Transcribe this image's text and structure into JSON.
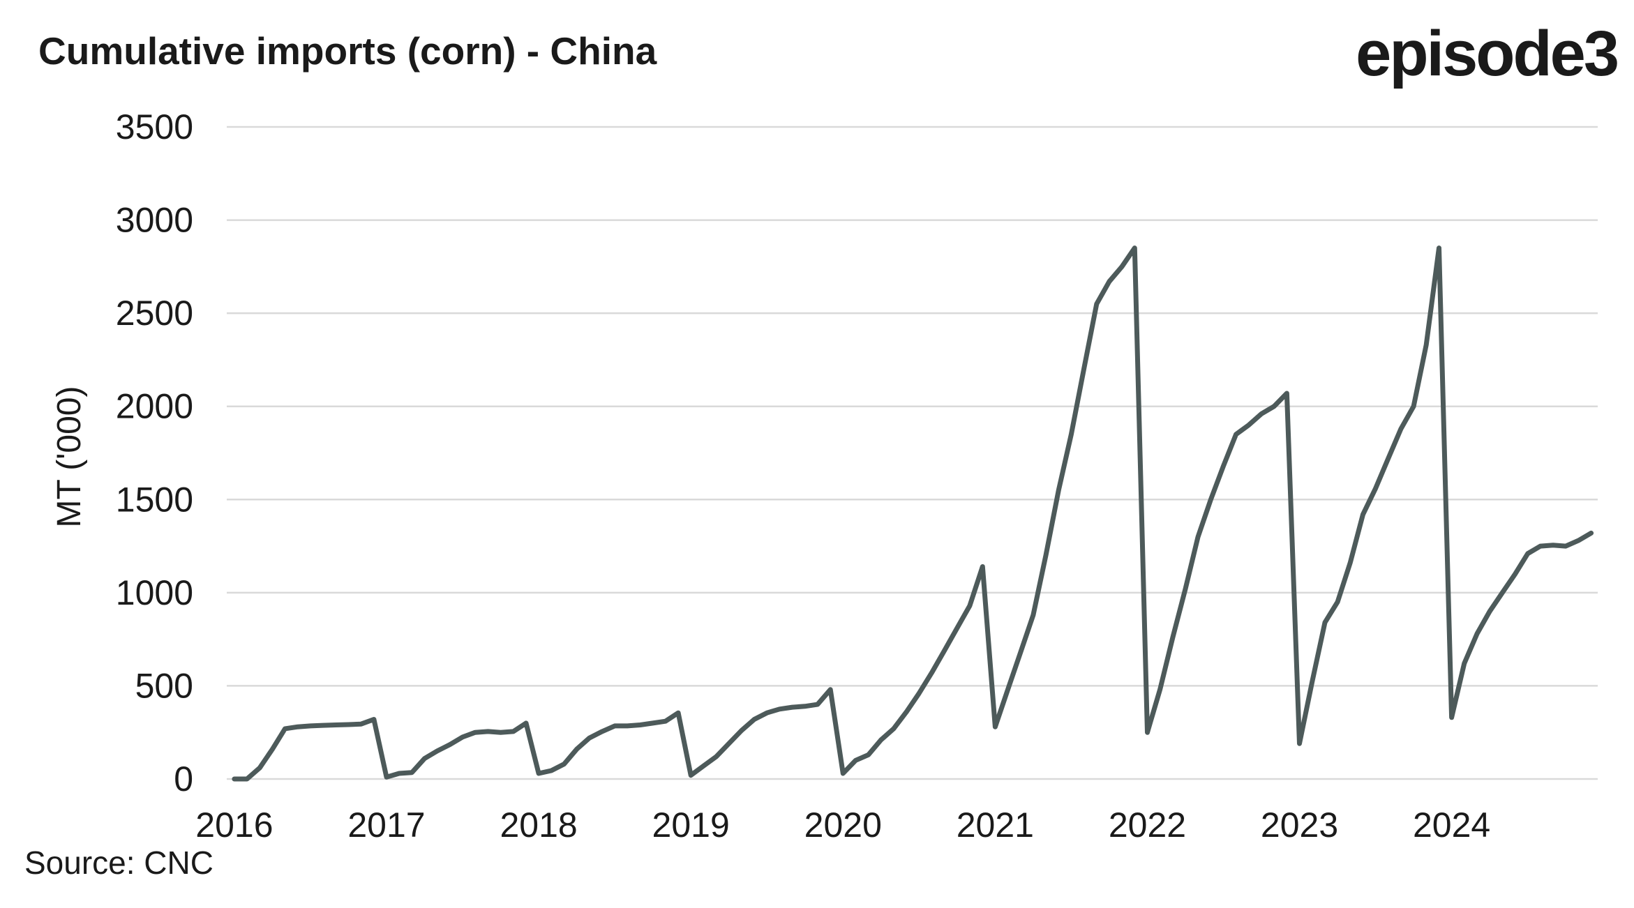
{
  "chart_data": {
    "type": "line",
    "title": "Cumulative imports (corn) - China",
    "brand": "episode3",
    "source": "Source: CNC",
    "ylabel": "MT ('000)",
    "color": "#4d5a5a",
    "grid": true,
    "xlim": [
      2015.95,
      2024.96
    ],
    "xticks": [
      2016,
      2017,
      2018,
      2019,
      2020,
      2021,
      2022,
      2023,
      2024
    ],
    "ylim": [
      0,
      3500
    ],
    "yticks": [
      0,
      500,
      1000,
      1500,
      2000,
      2500,
      3000,
      3500
    ],
    "x": [
      2016,
      2016.083,
      2016.167,
      2016.25,
      2016.333,
      2016.417,
      2016.5,
      2016.583,
      2016.667,
      2016.75,
      2016.833,
      2016.917,
      2017,
      2017.083,
      2017.167,
      2017.25,
      2017.333,
      2017.417,
      2017.5,
      2017.583,
      2017.667,
      2017.75,
      2017.833,
      2017.917,
      2018,
      2018.083,
      2018.167,
      2018.25,
      2018.333,
      2018.417,
      2018.5,
      2018.583,
      2018.667,
      2018.75,
      2018.833,
      2018.917,
      2019,
      2019.083,
      2019.167,
      2019.25,
      2019.333,
      2019.417,
      2019.5,
      2019.583,
      2019.667,
      2019.75,
      2019.833,
      2019.917,
      2020,
      2020.083,
      2020.167,
      2020.25,
      2020.333,
      2020.417,
      2020.5,
      2020.583,
      2020.667,
      2020.75,
      2020.833,
      2020.917,
      2021,
      2021.083,
      2021.167,
      2021.25,
      2021.333,
      2021.417,
      2021.5,
      2021.583,
      2021.667,
      2021.75,
      2021.833,
      2021.917,
      2022,
      2022.083,
      2022.167,
      2022.25,
      2022.333,
      2022.417,
      2022.5,
      2022.583,
      2022.667,
      2022.75,
      2022.833,
      2022.917,
      2023,
      2023.083,
      2023.167,
      2023.25,
      2023.333,
      2023.417,
      2023.5,
      2023.583,
      2023.667,
      2023.75,
      2023.833,
      2023.917,
      2024,
      2024.083,
      2024.167,
      2024.25,
      2024.333,
      2024.417,
      2024.5,
      2024.583,
      2024.667,
      2024.75,
      2024.833,
      2024.917
    ],
    "values": [
      0,
      0,
      60,
      160,
      270,
      280,
      285,
      288,
      290,
      292,
      295,
      320,
      10,
      30,
      35,
      110,
      150,
      185,
      225,
      250,
      255,
      250,
      255,
      300,
      30,
      45,
      80,
      160,
      220,
      255,
      285,
      285,
      290,
      300,
      310,
      355,
      20,
      70,
      120,
      190,
      260,
      320,
      355,
      375,
      385,
      390,
      400,
      480,
      30,
      100,
      130,
      210,
      270,
      360,
      460,
      570,
      690,
      810,
      930,
      1140,
      280,
      480,
      680,
      880,
      1200,
      1550,
      1850,
      2200,
      2550,
      2670,
      2750,
      2850,
      250,
      480,
      760,
      1020,
      1300,
      1500,
      1680,
      1850,
      1900,
      1960,
      2000,
      2070,
      190,
      520,
      840,
      950,
      1160,
      1420,
      1560,
      1720,
      1880,
      2000,
      2330,
      2850,
      330,
      620,
      780,
      900,
      1000,
      1100,
      1210,
      1250,
      1255,
      1250,
      1280,
      1320
    ]
  }
}
